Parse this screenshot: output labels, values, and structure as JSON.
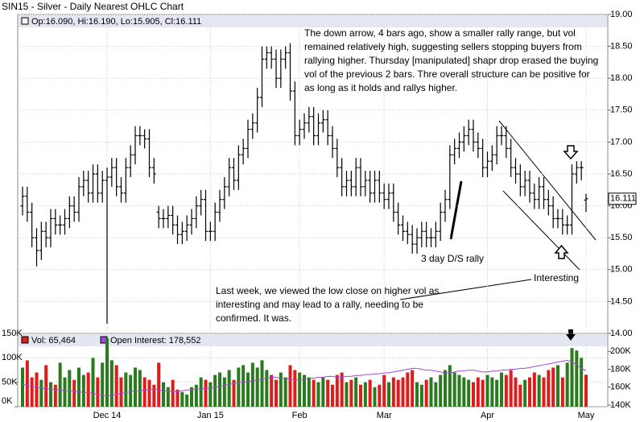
{
  "chart_data": {
    "type": "ohlc",
    "title": "SIN15 - Silver - Daily Nearest OHLC Chart",
    "ohlc_label": "Op:16.090, Hi:16.190, Lo:15.905, Cl:16.111",
    "bar_color": "#000000",
    "ylim": [
      14,
      19
    ],
    "yticks": [
      {
        "value": 19,
        "label": "19.00"
      },
      {
        "value": 18.5,
        "label": "18.50"
      },
      {
        "value": 18,
        "label": "18.00"
      },
      {
        "value": 17.5,
        "label": "17.50"
      },
      {
        "value": 17,
        "label": "17.00"
      },
      {
        "value": 16.5,
        "label": "16.50"
      },
      {
        "value": 16,
        "label": "16.00"
      },
      {
        "value": 15.5,
        "label": "15.50"
      },
      {
        "value": 15,
        "label": "15.00"
      },
      {
        "value": 14.5,
        "label": "14.50"
      },
      {
        "value": 14,
        "label": "14.00"
      }
    ],
    "grid": true,
    "categories": [
      null,
      null,
      null,
      null,
      null,
      null,
      null,
      null,
      null,
      null,
      null,
      null,
      null,
      null,
      null,
      null,
      null,
      null,
      "Dec 14",
      null,
      null,
      null,
      null,
      null,
      null,
      null,
      null,
      null,
      null,
      null,
      null,
      null,
      null,
      null,
      null,
      null,
      null,
      null,
      null,
      null,
      "Jan 15",
      null,
      null,
      null,
      null,
      null,
      null,
      null,
      null,
      null,
      null,
      null,
      null,
      null,
      null,
      null,
      null,
      null,
      null,
      "Feb",
      null,
      null,
      null,
      null,
      null,
      null,
      null,
      null,
      null,
      null,
      null,
      null,
      null,
      null,
      null,
      null,
      null,
      "Mar",
      null,
      null,
      null,
      null,
      null,
      null,
      null,
      null,
      null,
      null,
      null,
      null,
      null,
      null,
      null,
      null,
      null,
      null,
      null,
      null,
      null,
      "Apr",
      null,
      null,
      null,
      null,
      null,
      null,
      null,
      null,
      null,
      null,
      null,
      null,
      null,
      null,
      null,
      null,
      null,
      null,
      null,
      null,
      "May"
    ],
    "open": [
      16.0,
      16.15,
      15.9,
      15.5,
      15.3,
      15.6,
      15.5,
      15.8,
      15.7,
      15.7,
      15.8,
      16.0,
      15.9,
      16.3,
      16.4,
      16.2,
      16.5,
      16.2,
      16.4,
      16.45,
      16.6,
      16.3,
      16.2,
      16.6,
      16.8,
      17.1,
      17.1,
      17.05,
      16.6,
      15.9,
      15.8,
      15.8,
      15.85,
      15.7,
      15.55,
      15.6,
      15.7,
      15.8,
      16.0,
      16.1,
      15.6,
      15.6,
      15.9,
      16.1,
      16.3,
      16.6,
      16.4,
      16.8,
      16.9,
      17.2,
      17.3,
      17.7,
      18.3,
      18.4,
      18.3,
      18.0,
      18.3,
      18.4,
      17.8,
      17.1,
      17.2,
      17.3,
      17.4,
      17.1,
      17.3,
      17.35,
      17.1,
      16.9,
      16.6,
      16.3,
      16.4,
      16.3,
      16.6,
      16.3,
      16.4,
      16.2,
      16.4,
      16.2,
      16.1,
      16.2,
      15.9,
      15.7,
      15.6,
      15.55,
      15.4,
      15.5,
      15.6,
      15.5,
      15.5,
      15.6,
      15.9,
      16.1,
      16.8,
      16.9,
      17.0,
      17.1,
      17.2,
      17.0,
      16.9,
      16.6,
      16.7,
      16.8,
      17.1,
      17.1,
      16.9,
      16.6,
      16.5,
      16.3,
      16.4,
      16.2,
      16.1,
      16.3,
      16.1,
      16.0,
      15.8,
      15.8,
      15.7,
      15.7,
      16.5,
      16.6,
      16.09
    ],
    "high": [
      16.3,
      16.3,
      16.05,
      15.65,
      15.75,
      15.75,
      15.95,
      15.95,
      15.85,
      15.95,
      16.15,
      16.15,
      16.45,
      16.55,
      16.55,
      16.65,
      16.65,
      16.55,
      16.6,
      16.75,
      16.75,
      16.45,
      16.75,
      16.95,
      17.25,
      17.25,
      17.2,
      17.2,
      16.75,
      16.0,
      15.95,
      16.0,
      16.0,
      15.85,
      15.75,
      15.85,
      15.95,
      16.15,
      16.25,
      16.25,
      15.75,
      16.05,
      16.25,
      16.45,
      16.75,
      16.75,
      16.95,
      17.05,
      17.35,
      17.45,
      17.85,
      18.5,
      18.5,
      18.5,
      18.45,
      18.45,
      18.5,
      18.55,
      17.95,
      17.35,
      17.45,
      17.55,
      17.55,
      17.45,
      17.5,
      17.5,
      17.25,
      17.05,
      16.75,
      16.55,
      16.55,
      16.75,
      16.75,
      16.55,
      16.55,
      16.55,
      16.55,
      16.35,
      16.35,
      16.35,
      16.05,
      15.85,
      15.75,
      15.7,
      15.65,
      15.75,
      15.75,
      15.65,
      15.75,
      16.05,
      16.25,
      16.95,
      17.05,
      17.15,
      17.25,
      17.35,
      17.35,
      17.15,
      17.05,
      16.85,
      16.95,
      17.25,
      17.25,
      17.25,
      17.05,
      16.75,
      16.65,
      16.55,
      16.55,
      16.35,
      16.45,
      16.45,
      16.25,
      16.15,
      15.95,
      15.95,
      15.85,
      16.65,
      16.7,
      16.7,
      16.19
    ],
    "low": [
      15.85,
      15.75,
      15.35,
      15.05,
      15.15,
      15.35,
      15.35,
      15.55,
      15.55,
      15.55,
      15.65,
      15.75,
      15.75,
      16.15,
      16.05,
      16.05,
      16.05,
      16.05,
      14.15,
      16.3,
      16.15,
      16.05,
      16.05,
      16.45,
      16.65,
      16.95,
      16.9,
      16.45,
      16.35,
      15.65,
      15.65,
      15.65,
      15.55,
      15.4,
      15.4,
      15.45,
      15.55,
      15.65,
      15.85,
      15.45,
      15.45,
      15.45,
      15.75,
      15.95,
      16.15,
      16.25,
      16.25,
      16.65,
      16.75,
      17.05,
      17.15,
      17.55,
      18.15,
      18.15,
      17.85,
      17.85,
      18.15,
      17.65,
      16.95,
      16.95,
      17.05,
      17.15,
      16.95,
      16.95,
      17.15,
      16.95,
      16.75,
      16.45,
      16.15,
      16.15,
      16.15,
      16.15,
      16.15,
      16.15,
      16.05,
      16.05,
      16.05,
      15.95,
      15.95,
      15.75,
      15.55,
      15.45,
      15.4,
      15.25,
      15.25,
      15.35,
      15.35,
      15.35,
      15.35,
      15.45,
      15.75,
      15.95,
      16.65,
      16.75,
      16.85,
      16.95,
      16.85,
      16.75,
      16.45,
      16.45,
      16.55,
      16.65,
      16.95,
      16.75,
      16.45,
      16.35,
      16.15,
      16.15,
      16.05,
      15.95,
      15.95,
      15.95,
      15.85,
      15.65,
      15.65,
      15.55,
      15.55,
      15.55,
      16.35,
      16.4,
      15.905
    ],
    "close": [
      16.15,
      15.9,
      15.5,
      15.3,
      15.6,
      15.5,
      15.8,
      15.7,
      15.7,
      15.8,
      16.0,
      15.9,
      16.3,
      16.4,
      16.2,
      16.5,
      16.2,
      16.4,
      16.45,
      16.6,
      16.3,
      16.2,
      16.6,
      16.8,
      17.1,
      17.1,
      17.05,
      16.6,
      16.5,
      15.8,
      15.8,
      15.85,
      15.7,
      15.55,
      15.6,
      15.7,
      15.8,
      16.0,
      16.1,
      15.6,
      15.6,
      15.9,
      16.1,
      16.3,
      16.6,
      16.4,
      16.8,
      16.9,
      17.2,
      17.3,
      17.7,
      18.3,
      18.4,
      18.3,
      18.0,
      18.3,
      18.4,
      17.8,
      17.1,
      17.2,
      17.3,
      17.4,
      17.1,
      17.3,
      17.35,
      17.1,
      16.9,
      16.6,
      16.3,
      16.4,
      16.3,
      16.6,
      16.3,
      16.4,
      16.2,
      16.4,
      16.2,
      16.1,
      16.2,
      15.9,
      15.7,
      15.6,
      15.55,
      15.4,
      15.5,
      15.6,
      15.5,
      15.5,
      15.6,
      15.9,
      16.1,
      16.8,
      16.9,
      17.0,
      17.1,
      17.2,
      17.0,
      16.9,
      16.6,
      16.7,
      16.8,
      17.1,
      17.1,
      16.9,
      16.6,
      16.5,
      16.3,
      16.4,
      16.2,
      16.1,
      16.3,
      16.1,
      16.0,
      15.8,
      15.8,
      15.7,
      15.7,
      16.5,
      16.6,
      16.6,
      16.111
    ],
    "volume": {
      "name": "Vol: 65,464",
      "up_color": "#2a7a1e",
      "down_color": "#e01b1b",
      "ylim": [
        0,
        150000
      ],
      "yticks": [
        {
          "value": 150000,
          "label": "150K"
        },
        {
          "value": 100000,
          "label": "100K"
        },
        {
          "value": 50000,
          "label": "50K"
        },
        {
          "value": 0,
          "label": "0K"
        }
      ],
      "values": [
        80000,
        95000,
        60000,
        70000,
        55000,
        85000,
        50000,
        45000,
        90000,
        60000,
        75000,
        55000,
        80000,
        65000,
        70000,
        100000,
        60000,
        90000,
        140000,
        95000,
        85000,
        60000,
        70000,
        65000,
        80000,
        75000,
        60000,
        55000,
        45000,
        90000,
        50000,
        40000,
        55000,
        35000,
        30000,
        25000,
        40000,
        45000,
        60000,
        55000,
        50000,
        65000,
        70000,
        60000,
        75000,
        55000,
        80000,
        85000,
        70000,
        90000,
        80000,
        95000,
        75000,
        65000,
        55000,
        70000,
        60000,
        85000,
        75000,
        70000,
        65000,
        60000,
        55000,
        50000,
        60000,
        55000,
        45000,
        65000,
        70000,
        50000,
        55000,
        60000,
        45000,
        50000,
        55000,
        40000,
        45000,
        65000,
        50000,
        60000,
        55000,
        60000,
        70000,
        75000,
        50000,
        45000,
        55000,
        60000,
        50000,
        65000,
        75000,
        85000,
        70000,
        65000,
        60000,
        55000,
        50000,
        60000,
        55000,
        65000,
        60000,
        55000,
        70000,
        65000,
        75000,
        60000,
        45000,
        55000,
        60000,
        70000,
        65000,
        60000,
        75000,
        80000,
        85000,
        60000,
        90000,
        120000,
        115000,
        100000,
        65464
      ]
    },
    "open_interest": {
      "name": "Open Interest: 178,552",
      "color": "#a04ad8",
      "y2lim": [
        140000,
        220000
      ],
      "y2ticks": [
        {
          "value": 200000,
          "label": "200K"
        },
        {
          "value": 180000,
          "label": "180K"
        },
        {
          "value": 160000,
          "label": "160K"
        },
        {
          "value": 140000,
          "label": "140K"
        }
      ],
      "values": [
        163000,
        162000,
        161000,
        160000,
        159000,
        158000,
        158000,
        157000,
        157000,
        156000,
        156000,
        155000,
        155000,
        154000,
        154000,
        153000,
        152000,
        151000,
        150000,
        151000,
        152000,
        153000,
        154000,
        155000,
        156000,
        156000,
        157000,
        157000,
        158000,
        157000,
        156000,
        156000,
        155000,
        155000,
        156000,
        157000,
        157000,
        158000,
        158000,
        159000,
        159000,
        160000,
        161000,
        162000,
        163000,
        164000,
        165000,
        166000,
        166000,
        167000,
        168000,
        169000,
        170000,
        171000,
        171000,
        170000,
        170000,
        169000,
        168000,
        168000,
        169000,
        170000,
        170000,
        171000,
        171000,
        172000,
        172000,
        171000,
        171000,
        172000,
        172000,
        173000,
        173000,
        174000,
        174000,
        175000,
        175000,
        176000,
        176000,
        177000,
        178000,
        179000,
        180000,
        181000,
        181000,
        180000,
        179000,
        179000,
        178000,
        177000,
        176000,
        176000,
        177000,
        178000,
        178000,
        179000,
        179000,
        178000,
        177000,
        177000,
        178000,
        178000,
        179000,
        179000,
        180000,
        180000,
        181000,
        181000,
        182000,
        183000,
        184000,
        185000,
        186000,
        187000,
        188000,
        189000,
        190000,
        188000,
        185000,
        181000,
        178552
      ]
    },
    "annotations": [
      "The down arrow, 4 bars ago, show a smaller rally range, but vol remained relatively high, suggesting sellers stopping buyers from rallying higher.  Thursday [manipulated] shapr drop erased the buying vol of the previous 2 bars.  Thre overall structure can be positive for as long as it holds and rallys higher.",
      "3 day D/S rally",
      "Interesting",
      "Last week, we viewed the low close on higher vol as interesting and may lead to a rally, needing to be confirmed.  It was."
    ]
  }
}
